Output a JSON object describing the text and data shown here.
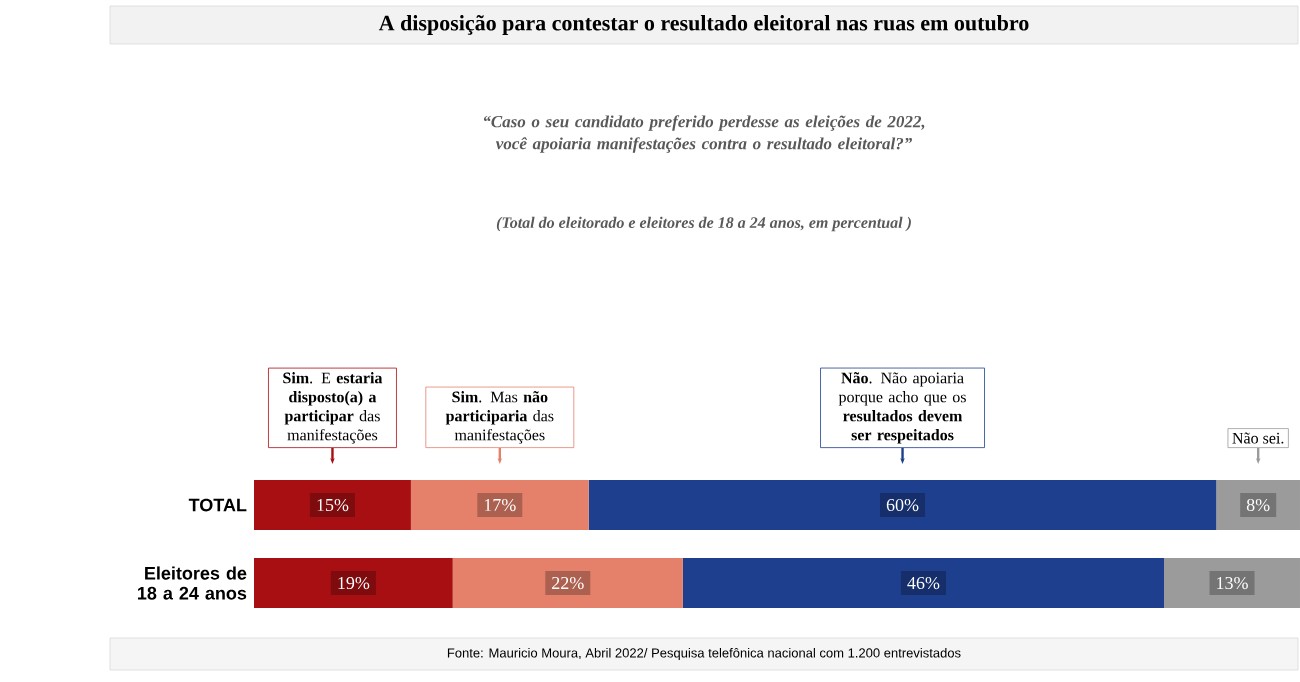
{
  "chart_data": {
    "type": "bar",
    "orientation": "horizontal",
    "stacked": true,
    "title": "A disposição para contestar o resultado eleitoral nas ruas em outubro",
    "subtitle": "“Caso o seu candidato preferido perdesse as eleições de 2022, você apoiaria manifestações contra o resultado eleitoral?”",
    "annotations": [
      "(Total do eleitorado e eleitores de 18 a 24 anos, em percentual )",
      "Fonte: Mauricio Moura, Abril 2022/ Pesquisa telefônica nacional com 1.200 entrevistados"
    ],
    "categories": [
      "TOTAL",
      "Eleitores de 18 a 24 anos"
    ],
    "series": [
      {
        "name": "**Sim**. E **estaria disposto(a) a participar** das manifestações",
        "color": "#a80f12",
        "values": [
          15,
          19
        ],
        "value_labels": [
          "15%",
          "19%"
        ]
      },
      {
        "name": "**Sim**. Mas **não participaria** das manifestações",
        "color": "#e5806b",
        "values": [
          17,
          22
        ],
        "value_labels": [
          "17%",
          "22%"
        ]
      },
      {
        "name": "**Não**. Não apoiaria porque acho que os **resultados devem ser respeitados**",
        "color": "#1d3f8e",
        "values": [
          60,
          46
        ],
        "value_labels": [
          "60%",
          "46%"
        ]
      },
      {
        "name": "Não sei.",
        "color": "#9b9b9b",
        "values": [
          8,
          13
        ],
        "value_labels": [
          "8%",
          "13%"
        ]
      }
    ]
  }
}
